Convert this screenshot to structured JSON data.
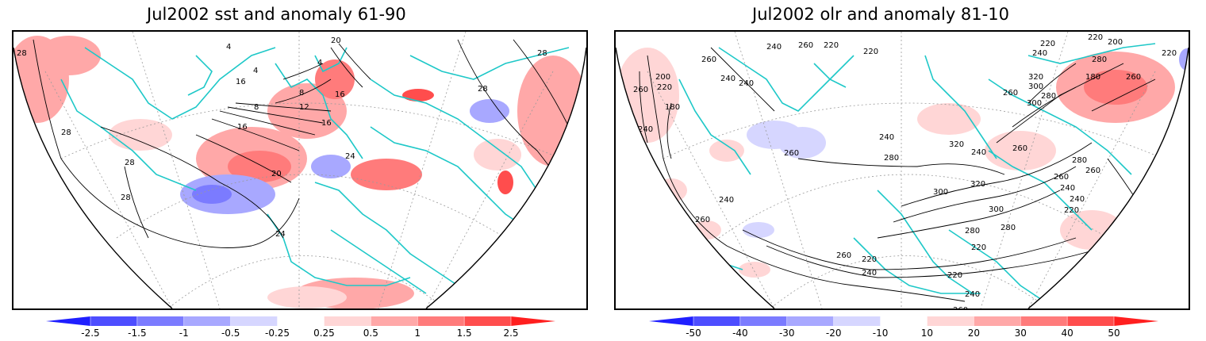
{
  "panels": [
    {
      "title": "Jul2002 sst and anomaly 61-90",
      "contour_labels": [
        "28",
        "28",
        "28",
        "28",
        "28",
        "28",
        "24",
        "20",
        "20",
        "16",
        "16",
        "12",
        "8",
        "8",
        "4",
        "4",
        "4",
        "16",
        "16",
        "24"
      ],
      "colorbar": {
        "labels": [
          "-2.5",
          "-1.5",
          "-1",
          "-0.5",
          "-0.25",
          "0.25",
          "0.5",
          "1",
          "1.5",
          "2.5"
        ],
        "colors": [
          "#1f1fff",
          "#4d4dff",
          "#7b7bff",
          "#a8a8ff",
          "#d6d6ff",
          "#ffffff",
          "#ffd6d6",
          "#ffa8a8",
          "#ff7b7b",
          "#ff4d4d",
          "#ff1f1f"
        ]
      }
    },
    {
      "title": "Jul2002 olr and anomaly 81-10",
      "contour_labels": [
        "240",
        "260",
        "200",
        "180",
        "260",
        "240",
        "220",
        "240",
        "260",
        "240",
        "220",
        "220",
        "260",
        "240",
        "280",
        "300",
        "320",
        "320",
        "300",
        "280",
        "260",
        "240",
        "220",
        "220",
        "240",
        "260",
        "280",
        "260",
        "240",
        "220",
        "260",
        "240",
        "220",
        "200",
        "180",
        "280",
        "300",
        "320",
        "240",
        "260",
        "240",
        "220",
        "260",
        "280",
        "260",
        "240",
        "220",
        "260",
        "280",
        "300",
        "220"
      ],
      "colorbar": {
        "labels": [
          "-50",
          "-40",
          "-30",
          "-20",
          "-10",
          "10",
          "20",
          "30",
          "40",
          "50"
        ],
        "colors": [
          "#1f1fff",
          "#4d4dff",
          "#7b7bff",
          "#a8a8ff",
          "#d6d6ff",
          "#ffffff",
          "#ffd6d6",
          "#ffa8a8",
          "#ff7b7b",
          "#ff4d4d",
          "#ff1f1f"
        ]
      }
    }
  ],
  "colors": {
    "coastline": "#1ec8c8",
    "contour": "#000000",
    "graticule": "#9a9a9a"
  }
}
